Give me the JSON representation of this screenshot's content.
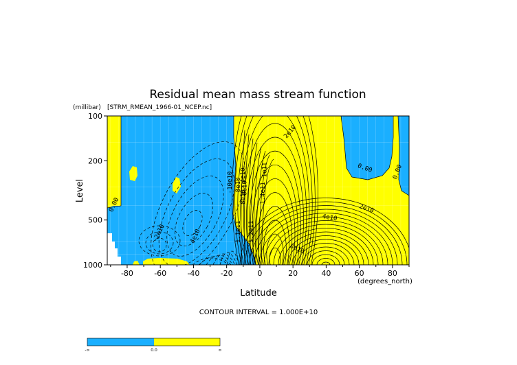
{
  "chart_data": {
    "type": "heatmap",
    "title": "Residual mean mass stream function",
    "dataset": "[STRM_RMEAN_1966-01_NCEP.nc]",
    "xlabel": "Latitude",
    "x_units": "(degrees_north)",
    "ylabel": "Level",
    "y_units": "(millibar)",
    "y_scale": "log",
    "xlim": [
      -92,
      90
    ],
    "ylim": [
      1000,
      100
    ],
    "x_ticks": [
      -80,
      -60,
      -40,
      -20,
      0,
      20,
      40,
      60,
      80
    ],
    "y_ticks": [
      100,
      200,
      500,
      1000
    ],
    "contour_interval_text": "CONTOUR INTERVAL = 1.000E+10",
    "contour_labels": [
      {
        "text": "0.00",
        "lat": -87,
        "p": 400,
        "angle": -65
      },
      {
        "text": "-2e10",
        "lat": -60,
        "p": 620,
        "angle": -65
      },
      {
        "text": "4e10",
        "lat": -38,
        "p": 650,
        "angle": -65
      },
      {
        "text": "-10e10",
        "lat": -17,
        "p": 280,
        "angle": -90
      },
      {
        "text": "8e10",
        "lat": -12,
        "p": 290,
        "angle": -90
      },
      {
        "text": "2e10",
        "lat": 19,
        "p": 130,
        "angle": -50
      },
      {
        "text": "4e10",
        "lat": -9,
        "p": 250,
        "angle": -90
      },
      {
        "text": "6e10",
        "lat": -8,
        "p": 305,
        "angle": -90
      },
      {
        "text": "8e10",
        "lat": -9,
        "p": 350,
        "angle": -90
      },
      {
        "text": "1e11",
        "lat": 4,
        "p": 230,
        "angle": -90
      },
      {
        "text": "1.4e11",
        "lat": 3,
        "p": 330,
        "angle": -90
      },
      {
        "text": "1.2e11",
        "lat": -4,
        "p": 600,
        "angle": -90
      },
      {
        "text": "1.1e11",
        "lat": -12,
        "p": 600,
        "angle": -90
      },
      {
        "text": "0.00",
        "lat": 63,
        "p": 230,
        "angle": 20
      },
      {
        "text": "0.00",
        "lat": 84,
        "p": 240,
        "angle": -70
      },
      {
        "text": "2e10",
        "lat": 64,
        "p": 430,
        "angle": 20
      },
      {
        "text": "4e10",
        "lat": 42,
        "p": 495,
        "angle": 10
      },
      {
        "text": "8e10",
        "lat": 22,
        "p": 800,
        "angle": 25
      }
    ],
    "colorbar": {
      "labels": [
        "-∞",
        "0.0",
        "∞"
      ],
      "colors": [
        "#1aafff",
        "#ffff00"
      ]
    },
    "colors": {
      "negative": "#1aafff",
      "positive": "#ffff00"
    }
  }
}
